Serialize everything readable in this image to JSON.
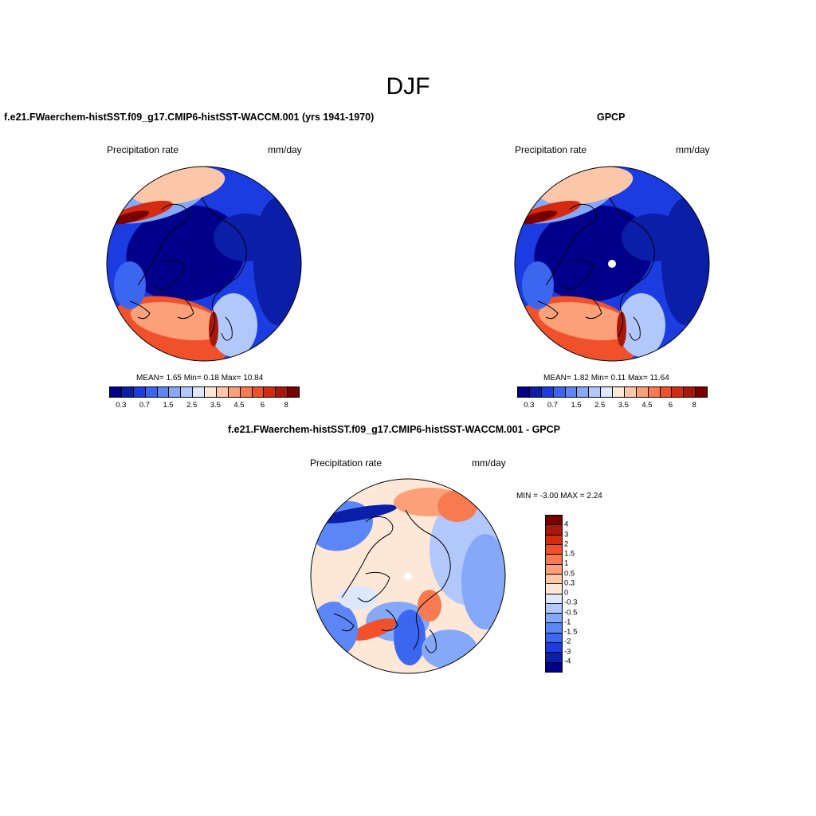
{
  "title": "DJF",
  "panels": [
    {
      "name": "model",
      "title": "f.e21.FWaerchem-histSST.f09_g17.CMIP6-histSST-WACCM.001 (yrs 1941-1970)",
      "left_label": "Precipitation rate",
      "right_label": "mm/day",
      "stats": "MEAN=   1.65  Min=    0.18  Max=  10.84",
      "missing_pole": false
    },
    {
      "name": "obs",
      "title": "GPCP",
      "left_label": "Precipitation rate",
      "right_label": "mm/day",
      "stats": "MEAN=   1.82  Min=    0.11  Max=  11.64",
      "missing_pole": true
    },
    {
      "name": "diff",
      "title": "f.e21.FWaerchem-histSST.f09_g17.CMIP6-histSST-WACCM.001 - GPCP",
      "left_label": "Precipitation rate",
      "right_label": "mm/day",
      "stats": "MIN =   -3.00 MAX =    2.24",
      "missing_pole": true
    }
  ],
  "abs_colorbar": {
    "colors": [
      "#00008b",
      "#0a1ea8",
      "#1a3ce0",
      "#3a66f0",
      "#5c86f5",
      "#86a8f8",
      "#b2c8fa",
      "#dde8fc",
      "#fde8d8",
      "#fcc6a8",
      "#fba078",
      "#f77a50",
      "#f0502a",
      "#d42a10",
      "#a81808",
      "#7a0000"
    ],
    "tick_labels": [
      "0.3",
      "0.7",
      "1.5",
      "2.5",
      "3.5",
      "4.5",
      "6",
      "8"
    ]
  },
  "diff_colorbar": {
    "colors": [
      "#7a0000",
      "#a81808",
      "#d42a10",
      "#f0502a",
      "#f77a50",
      "#fba078",
      "#fcc6a8",
      "#fde8d8",
      "#dde8fc",
      "#b2c8fa",
      "#86a8f8",
      "#5c86f5",
      "#3a66f0",
      "#1a3ce0",
      "#0a1ea8",
      "#00008b"
    ],
    "tick_labels": [
      "4",
      "3",
      "2",
      "1.5",
      "1",
      "0.5",
      "0.3",
      "0",
      "-0.3",
      "-0.5",
      "-1",
      "-1.5",
      "-2",
      "-3",
      "-4"
    ]
  }
}
